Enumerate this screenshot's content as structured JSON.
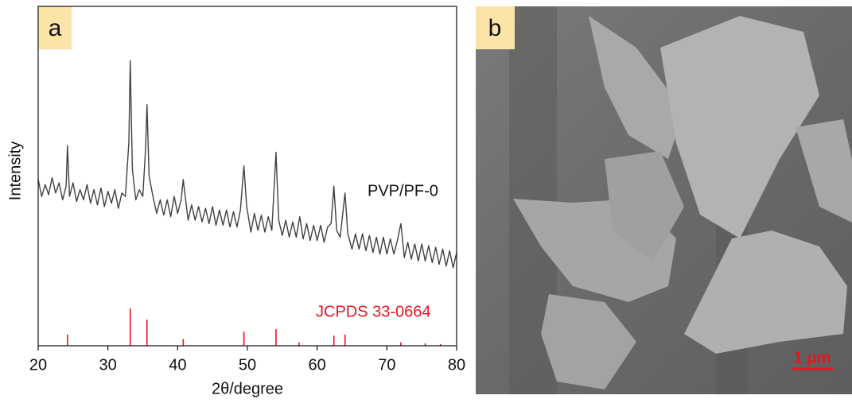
{
  "chart_data": {
    "type": "line",
    "panel_label": "a",
    "xlabel": "2θ/degree",
    "ylabel": "Intensity",
    "xlim": [
      20,
      80
    ],
    "ylim": [
      0,
      100
    ],
    "xticks": [
      20,
      30,
      40,
      50,
      60,
      70,
      80
    ],
    "series": [
      {
        "name": "PVP/PF-0",
        "color": "#404040",
        "style": "line",
        "x": [
          20,
          20.5,
          21,
          21.5,
          22,
          22.5,
          23,
          23.5,
          24,
          24.2,
          24.5,
          25,
          25.5,
          26,
          26.5,
          27,
          27.5,
          28,
          28.5,
          29,
          29.5,
          30,
          30.5,
          31,
          31.5,
          32,
          32.5,
          33,
          33.2,
          33.5,
          34,
          34.5,
          35,
          35.4,
          35.6,
          35.9,
          36.5,
          37,
          37.5,
          38,
          38.5,
          39,
          39.5,
          40,
          40.5,
          40.8,
          41.2,
          41.5,
          42,
          42.5,
          43,
          43.5,
          44,
          44.5,
          45,
          45.5,
          46,
          46.5,
          47,
          47.5,
          48,
          48.5,
          49,
          49.5,
          49.9,
          50.5,
          51,
          51.5,
          52,
          52.5,
          53,
          53.5,
          54.1,
          54.5,
          55,
          55.5,
          56,
          56.5,
          57,
          57.5,
          58,
          58.5,
          59,
          59.5,
          60,
          60.5,
          61,
          61.5,
          62,
          62.4,
          62.8,
          63.3,
          64,
          64.4,
          65,
          65.5,
          66,
          66.5,
          67,
          67.5,
          68,
          68.5,
          69,
          69.5,
          70,
          70.5,
          71,
          71.5,
          72,
          72.5,
          73,
          73.5,
          74,
          74.5,
          75,
          75.5,
          76,
          76.5,
          77,
          77.5,
          78,
          78.5,
          79,
          79.5,
          80
        ],
        "values": [
          49,
          44,
          47.5,
          44.5,
          49.5,
          45,
          48,
          43,
          47,
          59,
          44,
          48,
          42.5,
          46,
          43,
          47.5,
          42,
          46,
          41.5,
          46.5,
          41,
          45.5,
          42,
          46,
          40.5,
          45,
          44,
          60,
          84,
          52,
          43,
          46,
          44,
          58,
          71,
          50,
          43.5,
          39,
          43,
          38.5,
          43,
          38,
          44,
          39,
          43,
          49,
          42,
          37,
          41.5,
          37,
          41,
          36.5,
          40.5,
          36,
          41,
          35.5,
          40,
          35.5,
          40,
          35,
          39.5,
          35,
          40,
          53,
          41,
          33.5,
          39,
          34,
          38.5,
          33.5,
          38,
          34,
          57,
          37,
          32.5,
          37,
          32,
          36.5,
          32,
          38,
          31.5,
          36,
          31,
          35.5,
          31,
          35.5,
          30.5,
          35,
          36,
          47,
          34,
          32,
          45,
          33,
          28.5,
          33,
          28.5,
          33,
          28,
          32.5,
          27.5,
          32,
          27,
          32,
          27,
          31.5,
          27,
          31,
          36,
          26,
          30.5,
          25.5,
          30,
          25,
          30,
          25,
          29.5,
          24.5,
          29,
          24,
          28.5,
          23.5,
          28,
          23,
          27.5
        ]
      },
      {
        "name": "JCPDS 33-0664",
        "color": "#e8141e",
        "style": "sticks",
        "x": [
          24.2,
          33.2,
          35.6,
          40.8,
          49.5,
          54.1,
          57.4,
          62.4,
          64.0,
          72.0,
          75.5,
          77.7
        ],
        "values": [
          3.3,
          11,
          7.7,
          2,
          4.2,
          4.9,
          1,
          3,
          3.3,
          1,
          0.7,
          0.5
        ]
      }
    ]
  },
  "image_panel": {
    "label": "b",
    "scale_bar": "1 μm"
  }
}
